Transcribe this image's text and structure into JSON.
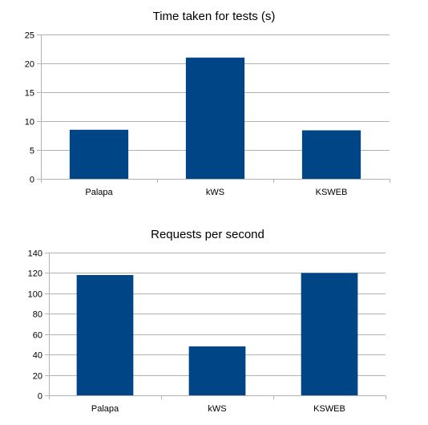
{
  "chart_data": [
    {
      "type": "bar",
      "title": "Time taken for tests (s)",
      "categories": [
        "Palapa",
        "kWS",
        "KSWEB"
      ],
      "values": [
        8.5,
        21,
        8.4
      ],
      "ylim": [
        0,
        25
      ],
      "yticks": [
        0,
        5,
        10,
        15,
        20,
        25
      ],
      "bar_color": "#004586",
      "grid": true,
      "legend": "none"
    },
    {
      "type": "bar",
      "title": "Requests per second",
      "categories": [
        "Palapa",
        "kWS",
        "KSWEB"
      ],
      "values": [
        118,
        48,
        120
      ],
      "ylim": [
        0,
        140
      ],
      "yticks": [
        0,
        20,
        40,
        60,
        80,
        100,
        120,
        140
      ],
      "bar_color": "#004586",
      "grid": true,
      "legend": "none"
    }
  ]
}
